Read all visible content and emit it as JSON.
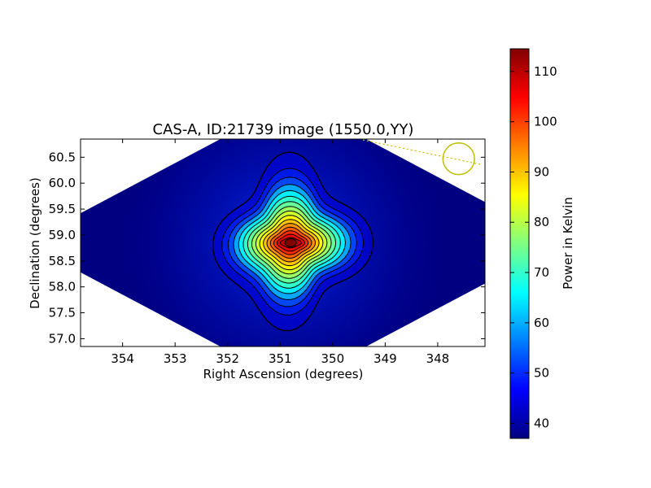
{
  "chart_data": {
    "type": "heatmap",
    "title": "CAS-A, ID:21739 image (1550.0,YY)",
    "xlabel": "Right Ascension (degrees)",
    "ylabel": "Declination (degrees)",
    "xlim": [
      354.8,
      347.1
    ],
    "ylim": [
      56.85,
      60.85
    ],
    "x_axis_inverted": true,
    "x_ticks": [
      354,
      353,
      352,
      351,
      350,
      349,
      348
    ],
    "x_tick_labels": [
      "354",
      "353",
      "352",
      "351",
      "350",
      "349",
      "348"
    ],
    "y_ticks": [
      57.0,
      57.5,
      58.0,
      58.5,
      59.0,
      59.5,
      60.0,
      60.5
    ],
    "y_tick_labels": [
      "57.0",
      "57.5",
      "58.0",
      "58.5",
      "59.0",
      "59.5",
      "60.0",
      "60.5"
    ],
    "colorbar": {
      "label": "Power in Kelvin",
      "range": [
        37,
        114.5
      ],
      "ticks": [
        40,
        50,
        60,
        70,
        80,
        90,
        100,
        110
      ],
      "tick_labels": [
        "40",
        "50",
        "60",
        "70",
        "80",
        "90",
        "100",
        "110"
      ],
      "colormap": "jet"
    },
    "source_peak": {
      "ra": 350.8,
      "dec": 58.85,
      "value": 114
    },
    "background_level": 37,
    "contour_levels": [
      44,
      50,
      55,
      60,
      65,
      70,
      74,
      78,
      82,
      86,
      90,
      94,
      98,
      102,
      106,
      110
    ],
    "beam_marker": {
      "ra": 347.6,
      "dec": 60.47,
      "radius_deg": 0.3,
      "color": "#bfbf00"
    },
    "data_region_shape": "diamond (blank white outside)",
    "grid": false
  },
  "colors": {
    "background_blue": "#0000b8",
    "contour": "#000000",
    "beam": "#bfbf00"
  }
}
